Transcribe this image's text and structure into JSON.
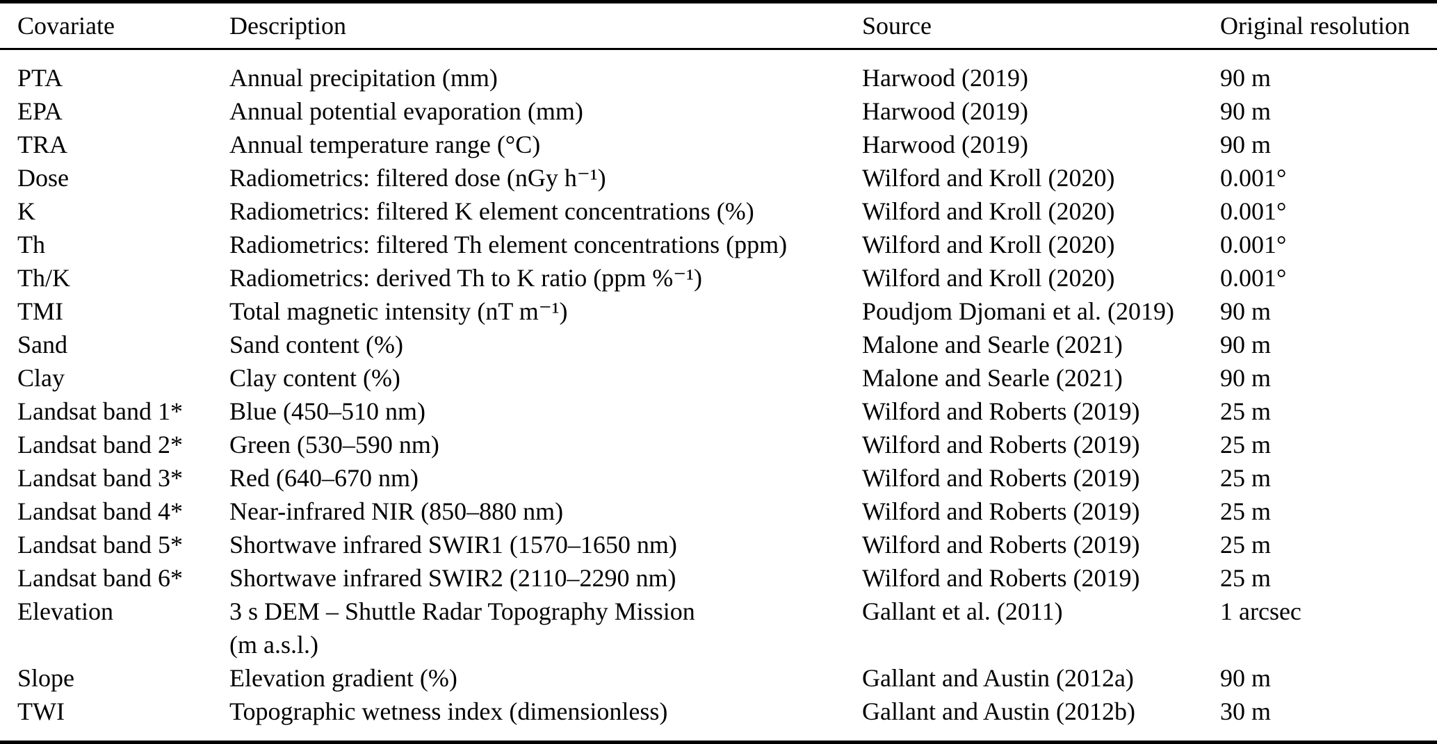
{
  "page": {
    "background_color": "#ffffff",
    "text_color": "#000000",
    "kind": "academic-paper-table"
  },
  "table": {
    "headers": {
      "covariate": "Covariate",
      "description": "Description",
      "source": "Source",
      "resolution": "Original resolution"
    },
    "rows": [
      {
        "covariate": "PTA",
        "description": "Annual precipitation (mm)",
        "source": "Harwood (2019)",
        "resolution": "90 m"
      },
      {
        "covariate": "EPA",
        "description": "Annual potential evaporation (mm)",
        "source": "Harwood (2019)",
        "resolution": "90 m"
      },
      {
        "covariate": "TRA",
        "description": "Annual temperature range (°C)",
        "source": "Harwood (2019)",
        "resolution": "90 m"
      },
      {
        "covariate": "Dose",
        "description": "Radiometrics: filtered dose (nGy h⁻¹)",
        "source": "Wilford and Kroll (2020)",
        "resolution": "0.001°"
      },
      {
        "covariate": "K",
        "description": "Radiometrics: filtered K element concentrations (%)",
        "source": "Wilford and Kroll (2020)",
        "resolution": "0.001°"
      },
      {
        "covariate": "Th",
        "description": "Radiometrics: filtered Th element concentrations (ppm)",
        "source": "Wilford and Kroll (2020)",
        "resolution": "0.001°"
      },
      {
        "covariate": "Th/K",
        "description": "Radiometrics: derived Th to K ratio (ppm %⁻¹)",
        "source": "Wilford and Kroll (2020)",
        "resolution": "0.001°"
      },
      {
        "covariate": "TMI",
        "description": "Total magnetic intensity (nT m⁻¹)",
        "source": "Poudjom Djomani et al. (2019)",
        "resolution": "90 m"
      },
      {
        "covariate": "Sand",
        "description": "Sand content (%)",
        "source": "Malone and Searle (2021)",
        "resolution": "90 m"
      },
      {
        "covariate": "Clay",
        "description": "Clay content (%)",
        "source": "Malone and Searle (2021)",
        "resolution": "90 m"
      },
      {
        "covariate": "Landsat band 1*",
        "description": "Blue (450–510 nm)",
        "source": "Wilford and Roberts (2019)",
        "resolution": "25 m"
      },
      {
        "covariate": "Landsat band 2*",
        "description": "Green (530–590 nm)",
        "source": "Wilford and Roberts (2019)",
        "resolution": "25 m"
      },
      {
        "covariate": "Landsat band 3*",
        "description": "Red (640–670 nm)",
        "source": "Wilford and Roberts (2019)",
        "resolution": "25 m"
      },
      {
        "covariate": "Landsat band 4*",
        "description": "Near-infrared NIR (850–880 nm)",
        "source": "Wilford and Roberts (2019)",
        "resolution": "25 m"
      },
      {
        "covariate": "Landsat band 5*",
        "description": "Shortwave infrared SWIR1 (1570–1650 nm)",
        "source": "Wilford and Roberts (2019)",
        "resolution": "25 m"
      },
      {
        "covariate": "Landsat band 6*",
        "description": "Shortwave infrared SWIR2 (2110–2290 nm)",
        "source": "Wilford and Roberts (2019)",
        "resolution": "25 m"
      },
      {
        "covariate": "Elevation",
        "description": "3 s DEM – Shuttle Radar Topography Mission\n(m a.s.l.)",
        "source": "Gallant et al. (2011)",
        "resolution": "1 arcsec"
      },
      {
        "covariate": "Slope",
        "description": "Elevation gradient (%)",
        "source": "Gallant and Austin (2012a)",
        "resolution": "90 m"
      },
      {
        "covariate": "TWI",
        "description": "Topographic wetness index (dimensionless)",
        "source": "Gallant and Austin (2012b)",
        "resolution": "30 m"
      }
    ]
  }
}
